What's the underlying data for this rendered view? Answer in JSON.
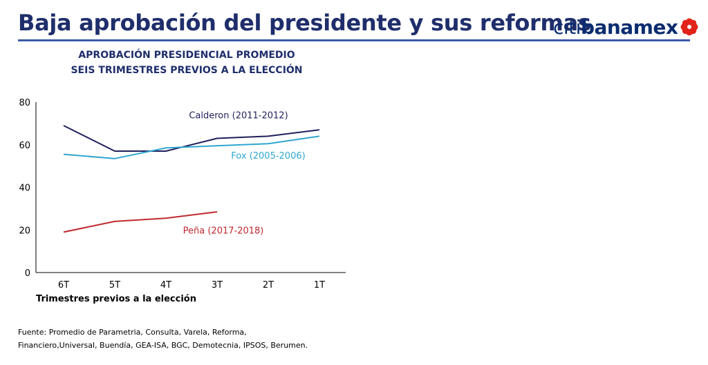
{
  "slide": {
    "title": "Baja aprobación del presidente y sus reformas",
    "logo": {
      "part1": "citi",
      "part2": "banamex",
      "accent_color": "#e2231a",
      "icon": "banamex-flower-icon"
    }
  },
  "chart_data": {
    "type": "line",
    "title_line1": "APROBACIÓN PRESIDENCIAL PROMEDIO",
    "title_line2": "SEIS TRIMESTRES PREVIOS A LA ELECCIÓN",
    "xlabel": "Trimestres previos a la elección",
    "ylabel": "",
    "categories": [
      "6T",
      "5T",
      "4T",
      "3T",
      "2T",
      "1T"
    ],
    "ylim": [
      0,
      80
    ],
    "yticks": [
      0,
      20,
      40,
      60,
      80
    ],
    "grid": false,
    "series": [
      {
        "name": "Calderon (2011-2012)",
        "color": "#1f1f5c",
        "values": [
          69,
          57,
          57,
          63,
          64,
          67
        ]
      },
      {
        "name": "Fox (2005-2006)",
        "color": "#2fa6cf",
        "values": [
          55.5,
          53.5,
          58.5,
          59.5,
          60.5,
          64
        ]
      },
      {
        "name": "Peña (2017-2018)",
        "color": "#c0282d",
        "values": [
          19,
          24,
          25.5,
          28.5,
          null,
          null
        ]
      }
    ]
  },
  "source": {
    "line1": "Fuente: Promedio de Parametria, Consulta, Varela, Reforma,",
    "line2": "Financiero,Universal, Buendía, GEA-ISA, BGC, Demotecnia, IPSOS, Berumen."
  }
}
